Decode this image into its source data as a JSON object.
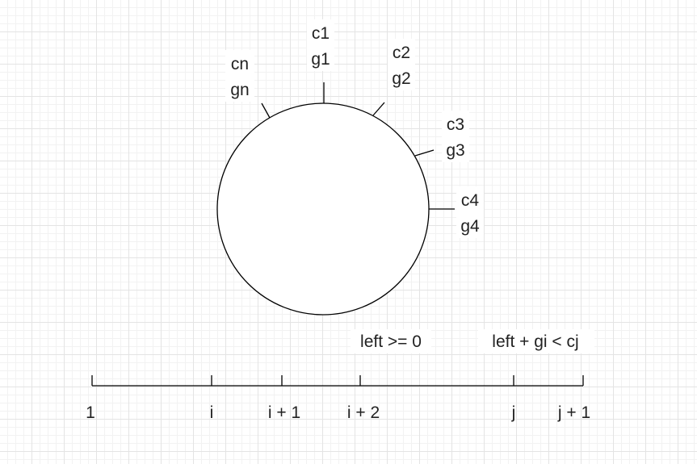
{
  "ring": {
    "markers": [
      {
        "c": "c1",
        "g": "g1"
      },
      {
        "c": "c2",
        "g": "g2"
      },
      {
        "c": "c3",
        "g": "g3"
      },
      {
        "c": "c4",
        "g": "g4"
      },
      {
        "c": "cn",
        "g": "gn"
      }
    ]
  },
  "number_line": {
    "ticks": [
      "1",
      "i",
      "i + 1",
      "i + 2",
      "j",
      "j + 1"
    ],
    "conditions": [
      "left >= 0",
      "left + gi < cj"
    ]
  }
}
